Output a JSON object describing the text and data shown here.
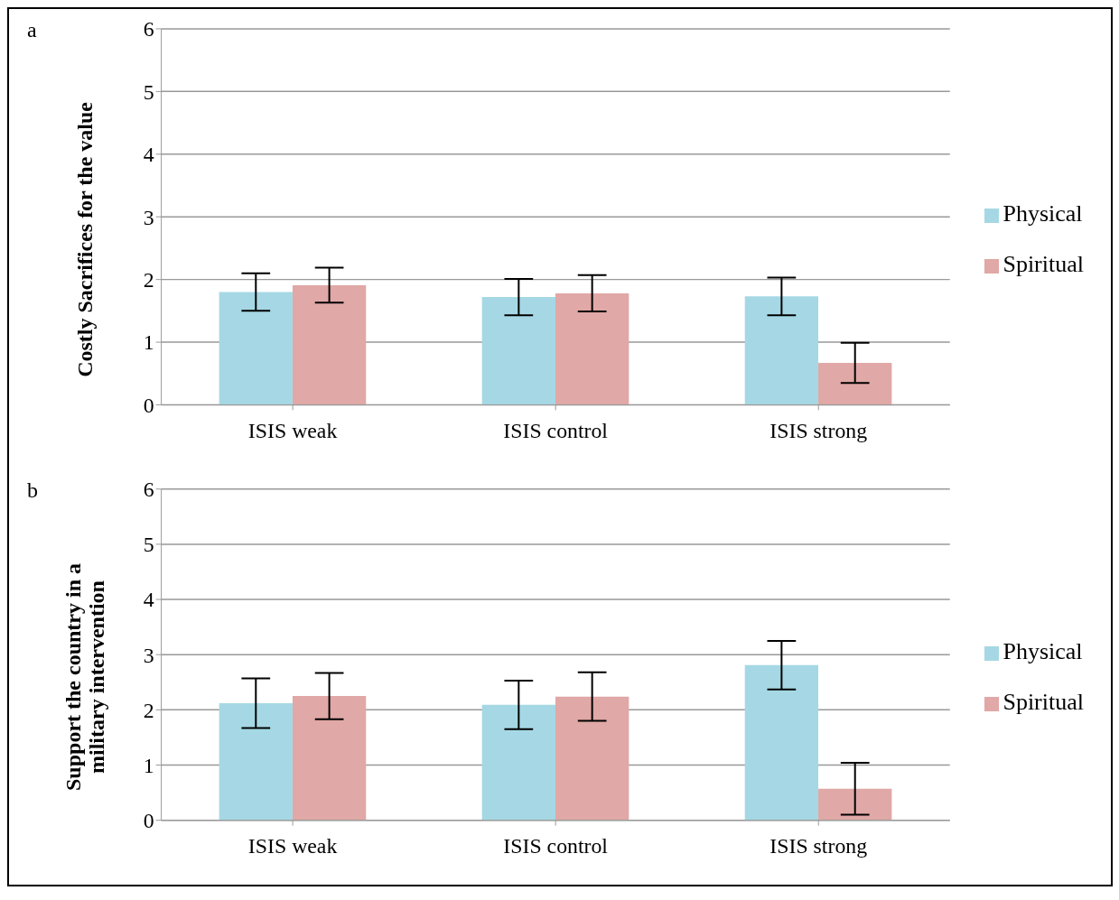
{
  "chart_data": [
    {
      "type": "bar",
      "title": "a",
      "ylabel": "Costly Sacrifices for the value",
      "categories": [
        "ISIS weak",
        "ISIS control",
        "ISIS strong"
      ],
      "series": [
        {
          "name": "Physical",
          "color": "#a5d8e4",
          "values": [
            1.8,
            1.72,
            1.73
          ],
          "errors": [
            0.3,
            0.29,
            0.3
          ]
        },
        {
          "name": "Spiritual",
          "color": "#e0a8a6",
          "values": [
            1.91,
            1.78,
            0.67
          ],
          "errors": [
            0.28,
            0.29,
            0.32
          ]
        }
      ],
      "ylim": [
        0,
        6
      ],
      "yticks": [
        0,
        1,
        2,
        3,
        4,
        5,
        6
      ],
      "grid": "y",
      "legend": "right"
    },
    {
      "type": "bar",
      "title": "b",
      "ylabel": "Support the country in a military intervention",
      "categories": [
        "ISIS weak",
        "ISIS control",
        "ISIS strong"
      ],
      "series": [
        {
          "name": "Physical",
          "color": "#a5d8e4",
          "values": [
            2.12,
            2.09,
            2.81
          ],
          "errors": [
            0.45,
            0.44,
            0.44
          ]
        },
        {
          "name": "Spiritual",
          "color": "#e0a8a6",
          "values": [
            2.25,
            2.24,
            0.57
          ],
          "errors": [
            0.42,
            0.44,
            0.47
          ]
        }
      ],
      "ylim": [
        0,
        6
      ],
      "yticks": [
        0,
        1,
        2,
        3,
        4,
        5,
        6
      ],
      "grid": "y",
      "legend": "right"
    }
  ]
}
